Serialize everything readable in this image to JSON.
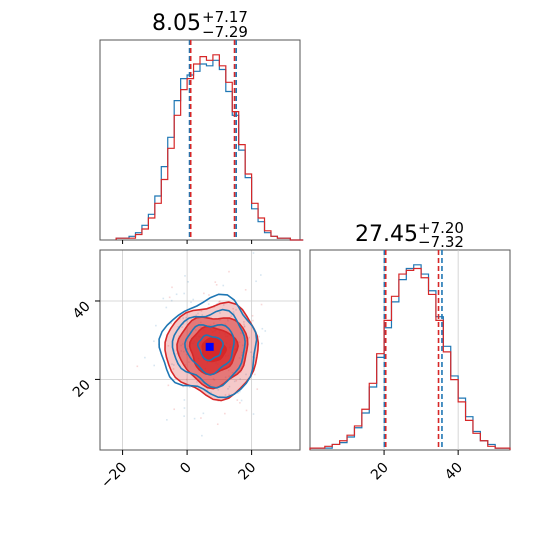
{
  "chart_data": {
    "type": "corner",
    "colors": {
      "series_a": "#1f77b4",
      "series_b": "#d62728",
      "marker": "#0000ff",
      "grid": "#cccccc"
    },
    "panels": {
      "x_hist": {
        "title": {
          "value": "8.05",
          "sup": "+7.17",
          "sub": "−7.29"
        },
        "xlim": [
          -27,
          35
        ],
        "bin_edges": [
          -22,
          -20,
          -18,
          -16,
          -14,
          -12,
          -10,
          -8,
          -6,
          -4,
          -2,
          0,
          2,
          4,
          6,
          8,
          10,
          12,
          14,
          16,
          18,
          20,
          22,
          24,
          26,
          28,
          30,
          32,
          34,
          36
        ],
        "series": [
          {
            "color": "#1f77b4",
            "counts": [
              1,
              1,
              2,
              4,
              8,
              14,
              24,
              40,
              56,
              76,
              88,
              90,
              92,
              96,
              95,
              98,
              93,
              81,
              68,
              49,
              34,
              17,
              10,
              4,
              2,
              1,
              1,
              0,
              0
            ],
            "quantile_lines": [
              0.76,
              15.22
            ]
          },
          {
            "color": "#d62728",
            "counts": [
              1,
              1,
              1,
              3,
              6,
              12,
              20,
              33,
              50,
              68,
              82,
              88,
              96,
              100,
              98,
              101,
              95,
              86,
              70,
              52,
              36,
              20,
              12,
              5,
              2,
              1,
              1,
              0,
              0
            ],
            "quantile_lines": [
              1.12,
              14.7
            ]
          }
        ]
      },
      "y_hist": {
        "title": {
          "value": "27.45",
          "sup": "+7.20",
          "sub": "−7.32"
        },
        "xlim": [
          0,
          54
        ],
        "xticks": [
          20,
          40
        ],
        "bin_edges": [
          0,
          2,
          4,
          6,
          8,
          10,
          12,
          14,
          16,
          18,
          20,
          22,
          24,
          26,
          28,
          30,
          32,
          34,
          36,
          38,
          40,
          42,
          44,
          46,
          48,
          50,
          52,
          54
        ],
        "series": [
          {
            "color": "#1f77b4",
            "counts": [
              1,
              1,
              1,
              3,
              4,
              7,
              12,
              20,
              34,
              50,
              66,
              80,
              92,
              98,
              100,
              95,
              86,
              72,
              56,
              40,
              28,
              18,
              10,
              5,
              3,
              1,
              1
            ],
            "quantile_lines": [
              20.08,
              35.63
            ]
          },
          {
            "color": "#d62728",
            "counts": [
              1,
              1,
              2,
              3,
              5,
              8,
              13,
              22,
              36,
              52,
              70,
              83,
              95,
              97,
              98,
              93,
              84,
              70,
              53,
              38,
              26,
              16,
              9,
              5,
              2,
              1,
              1
            ],
            "quantile_lines": [
              20.45,
              34.7
            ]
          }
        ]
      },
      "scatter_2d": {
        "xlim": [
          -27,
          35
        ],
        "ylim": [
          2,
          53
        ],
        "xticks": [
          -20,
          0,
          20
        ],
        "yticks": [
          20,
          40
        ],
        "center": {
          "x": 7.0,
          "y": 28.3
        },
        "contour_levels_sigma": [
          0.5,
          1.0,
          1.5,
          2.0
        ],
        "series": [
          {
            "color": "#1f77b4",
            "mean": [
              7.2,
              28.2
            ],
            "sd": [
              7.3,
              7.3
            ]
          },
          {
            "color": "#d62728",
            "mean": [
              8.1,
              27.5
            ],
            "sd": [
              7.2,
              7.2
            ]
          }
        ]
      }
    },
    "tick_labels": {
      "x_2d": [
        "−20",
        "0",
        "20"
      ],
      "y_2d": [
        "20",
        "40"
      ],
      "x_yhist": [
        "20",
        "40"
      ]
    }
  }
}
